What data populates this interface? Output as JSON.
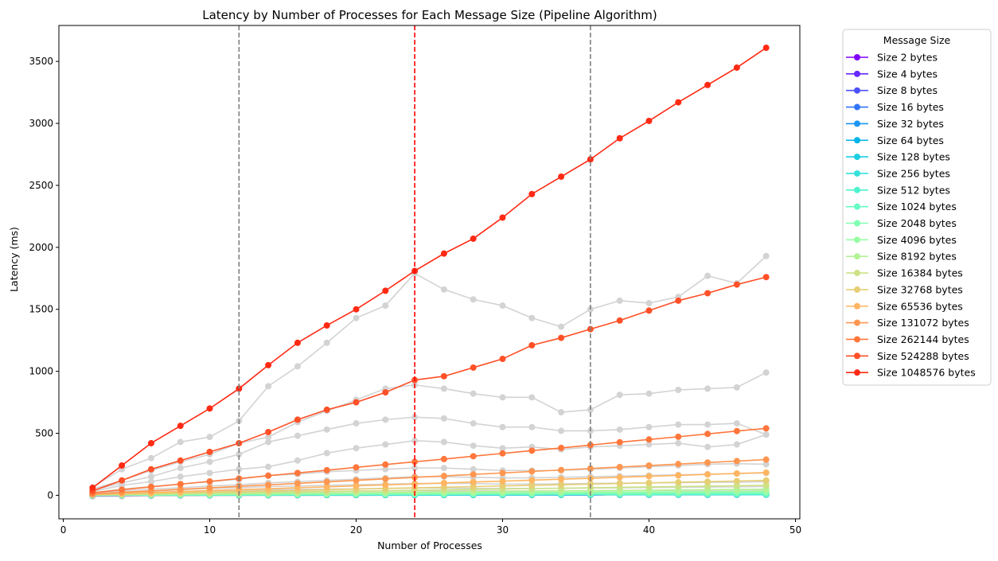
{
  "chart_data": {
    "type": "line",
    "title": "Latency by Number of Processes for Each Message Size (Pipeline Algorithm)",
    "xlabel": "Number of Processes",
    "ylabel": "Latency (ms)",
    "xlim": [
      -0.3,
      50.3
    ],
    "ylim": [
      -190,
      3790
    ],
    "xticks": [
      0,
      10,
      20,
      30,
      40,
      50
    ],
    "yticks": [
      0,
      500,
      1000,
      1500,
      2000,
      2500,
      3000,
      3500
    ],
    "grid": false,
    "legend": {
      "title": "Message Size",
      "placement": "outside-top-right"
    },
    "vlines": [
      {
        "x": 12,
        "color": "#808080",
        "style": "dashed"
      },
      {
        "x": 24,
        "color": "#ff0000",
        "style": "dashed"
      },
      {
        "x": 36,
        "color": "#808080",
        "style": "dashed"
      }
    ],
    "x": [
      2,
      4,
      6,
      8,
      10,
      12,
      14,
      16,
      18,
      20,
      22,
      24,
      26,
      28,
      30,
      32,
      34,
      36,
      38,
      40,
      42,
      44,
      46,
      48
    ],
    "series": [
      {
        "name": "Size 2 bytes",
        "color": "#8000ff",
        "values": [
          0.5,
          0.8,
          1,
          1.2,
          1.4,
          1.6,
          1.8,
          2,
          2.2,
          2.4,
          2.6,
          2.8,
          3,
          3.2,
          3.4,
          3.6,
          3.8,
          4,
          4.2,
          4.4,
          4.6,
          4.8,
          5,
          5.2
        ]
      },
      {
        "name": "Size 4 bytes",
        "color": "#6629fe",
        "values": [
          0.5,
          0.8,
          1,
          1.2,
          1.4,
          1.6,
          1.8,
          2,
          2.2,
          2.4,
          2.6,
          2.8,
          3,
          3.2,
          3.4,
          3.6,
          3.8,
          4,
          4.2,
          4.4,
          4.6,
          4.8,
          5,
          5.2
        ]
      },
      {
        "name": "Size 8 bytes",
        "color": "#4c50fc",
        "values": [
          0.5,
          0.8,
          1,
          1.2,
          1.4,
          1.6,
          1.8,
          2,
          2.2,
          2.4,
          2.6,
          2.8,
          3,
          3.2,
          3.4,
          3.6,
          3.8,
          4,
          4.2,
          4.4,
          4.6,
          4.8,
          5,
          5.2
        ]
      },
      {
        "name": "Size 16 bytes",
        "color": "#3276f8",
        "values": [
          0.6,
          0.9,
          1.1,
          1.3,
          1.5,
          1.7,
          1.9,
          2.1,
          2.3,
          2.5,
          2.7,
          2.9,
          3.1,
          3.3,
          3.5,
          3.7,
          3.9,
          4.1,
          4.3,
          4.5,
          4.7,
          4.9,
          5.1,
          5.3
        ]
      },
      {
        "name": "Size 32 bytes",
        "color": "#1996f3",
        "values": [
          0.6,
          0.9,
          1.1,
          1.3,
          1.5,
          1.7,
          1.9,
          2.1,
          2.3,
          2.5,
          2.7,
          2.9,
          3.1,
          3.3,
          3.5,
          3.7,
          3.9,
          4.1,
          4.3,
          4.5,
          4.7,
          4.9,
          5.1,
          5.3
        ]
      },
      {
        "name": "Size 64 bytes",
        "color": "#00b5eb",
        "values": [
          0.7,
          1,
          1.2,
          1.4,
          1.6,
          1.8,
          2,
          2.2,
          2.4,
          2.6,
          2.8,
          3,
          3.2,
          3.4,
          3.6,
          3.8,
          4,
          4.2,
          4.4,
          4.6,
          4.8,
          5,
          5.2,
          5.4
        ]
      },
      {
        "name": "Size 128 bytes",
        "color": "#1acee3",
        "values": [
          0.8,
          1.1,
          1.3,
          1.5,
          1.7,
          1.9,
          2.1,
          2.3,
          2.5,
          2.7,
          2.9,
          3.1,
          3.3,
          3.5,
          3.7,
          3.9,
          4.1,
          4.3,
          4.5,
          4.7,
          4.9,
          5.1,
          5.3,
          5.5
        ]
      },
      {
        "name": "Size 256 bytes",
        "color": "#33e2da",
        "values": [
          1,
          1.3,
          1.5,
          1.7,
          1.9,
          2.1,
          2.3,
          2.5,
          2.7,
          2.9,
          3.1,
          3.3,
          3.5,
          3.7,
          3.9,
          4.1,
          4.3,
          4.5,
          4.7,
          4.9,
          5.1,
          5.3,
          5.5,
          5.7
        ]
      },
      {
        "name": "Size 512 bytes",
        "color": "#4df3ce",
        "values": [
          1.2,
          1.5,
          1.8,
          2.1,
          2.4,
          2.7,
          3,
          3.3,
          3.6,
          3.9,
          4.2,
          4.5,
          4.8,
          5.1,
          5.4,
          5.7,
          6,
          6.3,
          6.6,
          6.9,
          7.2,
          7.5,
          7.8,
          8.1
        ]
      },
      {
        "name": "Size 1024 bytes",
        "color": "#66fcc2",
        "values": [
          1.5,
          2,
          2.5,
          3,
          3.5,
          4,
          4.5,
          5,
          5.5,
          6,
          6.5,
          7,
          7.5,
          8,
          8.5,
          9,
          9.5,
          10,
          10.5,
          11,
          11.5,
          12,
          12.5,
          13
        ]
      },
      {
        "name": "Size 2048 bytes",
        "color": "#80ffb4",
        "values": [
          2,
          2.8,
          3.6,
          4.4,
          5.2,
          6,
          6.8,
          7.6,
          8.4,
          9.2,
          10,
          10.8,
          11.6,
          12.4,
          13.2,
          14,
          14.8,
          15.6,
          16.4,
          17.2,
          18,
          18.8,
          19.6,
          20.4
        ]
      },
      {
        "name": "Size 4096 bytes",
        "color": "#99fca5",
        "values": [
          2.5,
          3.8,
          5.1,
          6.4,
          7.7,
          9,
          10.3,
          11.6,
          12.9,
          14.2,
          15.5,
          16.8,
          18.1,
          19.4,
          20.7,
          22,
          23.3,
          24.6,
          25.9,
          27.2,
          28.5,
          29.8,
          31.1,
          32.4
        ]
      },
      {
        "name": "Size 8192 bytes",
        "color": "#b3f396",
        "values": [
          3,
          5,
          7,
          9,
          11,
          13,
          15,
          17,
          19,
          21,
          23,
          25,
          27,
          29,
          31,
          33,
          35,
          37,
          39,
          41,
          43,
          45,
          47,
          49
        ]
      },
      {
        "name": "Size 16384 bytes",
        "color": "#cce285",
        "values": [
          4,
          7,
          10.5,
          14,
          17,
          20.5,
          24,
          27,
          30.5,
          34,
          37,
          40.5,
          44,
          47,
          50.5,
          54,
          57,
          60.5,
          64,
          67,
          70.5,
          74,
          77,
          80.5
        ]
      },
      {
        "name": "Size 32768 bytes",
        "color": "#e6ce74",
        "values": [
          5,
          10,
          15,
          20,
          25,
          30,
          35,
          40,
          45,
          50,
          55,
          60,
          65,
          70,
          75,
          80,
          85,
          90,
          95,
          100,
          105,
          110,
          115,
          120
        ]
      },
      {
        "name": "Size 65536 bytes",
        "color": "#ffb561",
        "values": [
          7,
          15,
          22,
          30,
          38,
          45,
          53,
          61,
          68,
          76,
          84,
          91,
          99,
          107,
          114,
          122,
          130,
          137,
          145,
          153,
          160,
          168,
          176,
          183
        ]
      },
      {
        "name": "Size 131072 bytes",
        "color": "#ff964f",
        "values": [
          10,
          24,
          36,
          48,
          60,
          72,
          84,
          96,
          108,
          120,
          132,
          144,
          156,
          168,
          180,
          192,
          204,
          216,
          228,
          240,
          252,
          264,
          276,
          288
        ]
      },
      {
        "name": "Size 262144 bytes",
        "color": "#ff763b",
        "values": [
          20,
          45,
          68,
          90,
          112,
          135,
          158,
          180,
          202,
          225,
          248,
          270,
          292,
          315,
          338,
          360,
          382,
          405,
          428,
          450,
          472,
          495,
          518,
          540
        ]
      },
      {
        "name": "Size 524288 bytes",
        "color": "#ff5027",
        "values": [
          35,
          120,
          210,
          280,
          350,
          420,
          510,
          610,
          690,
          750,
          830,
          930,
          960,
          1030,
          1100,
          1210,
          1270,
          1340,
          1410,
          1490,
          1570,
          1630,
          1700,
          1760
        ]
      },
      {
        "name": "Size 1048576 bytes",
        "color": "#ff2a14",
        "values": [
          60,
          240,
          420,
          560,
          700,
          860,
          1050,
          1230,
          1370,
          1500,
          1650,
          1810,
          1950,
          2070,
          2240,
          2430,
          2570,
          2710,
          2880,
          3020,
          3170,
          3310,
          3450,
          3610
        ]
      }
    ],
    "highlighted_series": "Size 1048576 bytes",
    "gray_series_color": "#d3d3d3",
    "gray_series": [
      {
        "values": [
          65,
          210,
          300,
          430,
          470,
          600,
          880,
          1040,
          1230,
          1430,
          1530,
          1790,
          1660,
          1580,
          1530,
          1430,
          1360,
          1500,
          1570,
          1550,
          1600,
          1770,
          1710,
          1930
        ]
      },
      {
        "values": [
          50,
          120,
          200,
          270,
          330,
          420,
          470,
          590,
          680,
          770,
          860,
          890,
          860,
          820,
          790,
          790,
          670,
          690,
          810,
          820,
          850,
          860,
          870,
          990
        ]
      },
      {
        "values": [
          40,
          100,
          150,
          220,
          270,
          330,
          430,
          480,
          530,
          580,
          610,
          630,
          620,
          580,
          550,
          550,
          520,
          520,
          530,
          550,
          570,
          570,
          580,
          490
        ]
      },
      {
        "values": [
          30,
          80,
          110,
          150,
          180,
          210,
          230,
          280,
          340,
          380,
          410,
          440,
          430,
          400,
          380,
          390,
          370,
          390,
          400,
          410,
          420,
          390,
          410,
          490
        ]
      },
      {
        "values": [
          20,
          50,
          70,
          90,
          110,
          130,
          160,
          170,
          190,
          200,
          210,
          220,
          220,
          210,
          200,
          200,
          200,
          210,
          220,
          230,
          240,
          250,
          255,
          250
        ]
      },
      {
        "values": [
          15,
          35,
          50,
          60,
          75,
          85,
          100,
          110,
          120,
          130,
          140,
          150,
          150,
          145,
          140,
          140,
          145,
          150,
          155,
          160,
          165,
          170,
          175,
          180
        ]
      },
      {
        "values": [
          10,
          25,
          35,
          45,
          55,
          60,
          70,
          75,
          80,
          85,
          90,
          95,
          95,
          95,
          90,
          90,
          92,
          95,
          98,
          100,
          102,
          104,
          106,
          110
        ]
      },
      {
        "values": [
          8,
          18,
          25,
          30,
          35,
          40,
          45,
          48,
          50,
          52,
          55,
          58,
          58,
          56,
          55,
          55,
          56,
          58,
          60,
          62,
          64,
          66,
          68,
          70
        ]
      },
      {
        "values": [
          6,
          12,
          16,
          20,
          23,
          26,
          28,
          30,
          32,
          34,
          35,
          36,
          36,
          35,
          35,
          35,
          36,
          37,
          38,
          39,
          40,
          41,
          42,
          44
        ]
      },
      {
        "values": [
          4,
          8,
          11,
          13,
          15,
          16,
          18,
          19,
          20,
          21,
          22,
          23,
          23,
          22,
          22,
          22,
          23,
          24,
          24,
          25,
          26,
          26,
          27,
          28
        ]
      },
      {
        "values": [
          2,
          4,
          6,
          7,
          8,
          9,
          10,
          11,
          11,
          12,
          12,
          13,
          13,
          13,
          13,
          13,
          13,
          14,
          14,
          14,
          15,
          15,
          15,
          16
        ]
      },
      {
        "values": [
          -10,
          -8,
          -6,
          -5,
          -4,
          -3,
          -2,
          -2,
          -1,
          -1,
          0,
          0,
          1,
          1,
          1,
          1,
          2,
          2,
          2,
          3,
          3,
          3,
          4,
          5
        ]
      }
    ]
  }
}
